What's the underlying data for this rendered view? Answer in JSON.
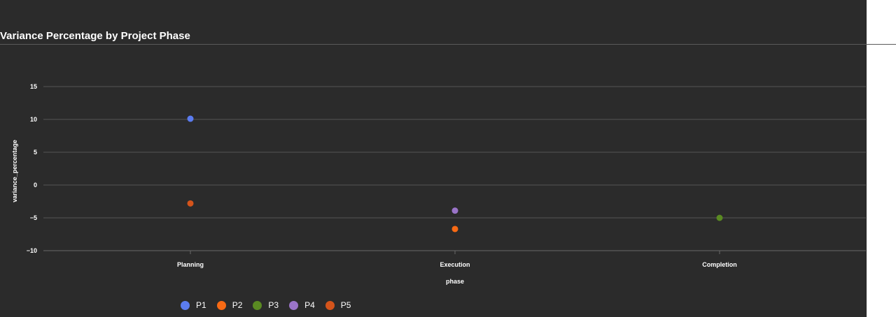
{
  "chart_data": {
    "type": "scatter",
    "title": "Variance Percentage by Project Phase",
    "xlabel": "phase",
    "ylabel": "variance_percentage",
    "categories": [
      "Planning",
      "Execution",
      "Completion"
    ],
    "ylim": [
      -10,
      15
    ],
    "yticks": [
      15,
      10,
      5,
      0,
      -5,
      -10
    ],
    "ytick_labels": [
      "15",
      "10",
      "5",
      "0",
      "−5",
      "−10"
    ],
    "grid": true,
    "legend_position": "bottom-left",
    "series": [
      {
        "name": "P1",
        "color": "#5b7cf0",
        "points": [
          {
            "x": "Planning",
            "y": 10.1
          }
        ]
      },
      {
        "name": "P2",
        "color": "#f86a14",
        "points": [
          {
            "x": "Execution",
            "y": -6.7
          }
        ]
      },
      {
        "name": "P3",
        "color": "#5a8a22",
        "points": [
          {
            "x": "Completion",
            "y": -5
          }
        ]
      },
      {
        "name": "P4",
        "color": "#9a74c8",
        "points": [
          {
            "x": "Execution",
            "y": -3.9
          }
        ]
      },
      {
        "name": "P5",
        "color": "#d4541b",
        "points": [
          {
            "x": "Planning",
            "y": -2.8
          }
        ]
      }
    ]
  }
}
